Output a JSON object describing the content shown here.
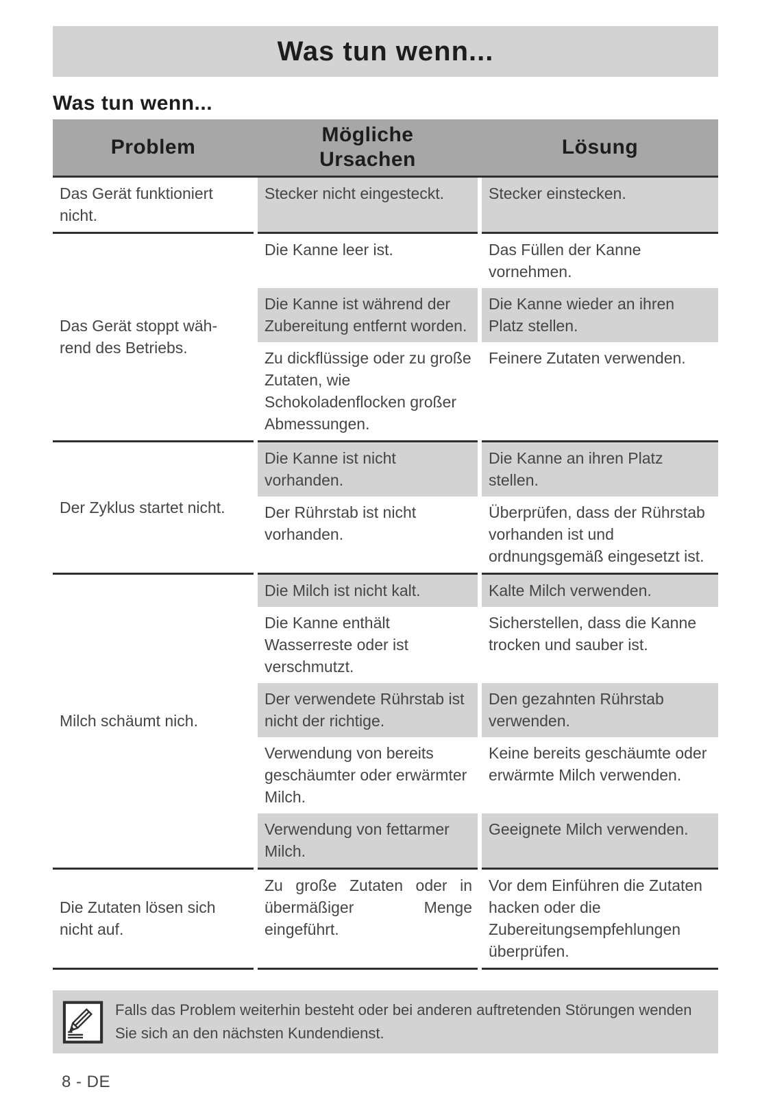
{
  "page": {
    "banner_title": "Was tun wenn...",
    "section_heading": "Was tun wenn...",
    "footer": "8 - DE"
  },
  "colors": {
    "banner_bg": "#d3d3d3",
    "header_bg": "#a7a7a7",
    "shaded_bg": "#d3d3d3",
    "rule": "#2f2f2f",
    "body_text": "#454545",
    "heading_text": "#1d1d1d"
  },
  "table": {
    "headers": [
      "Problem",
      "Mögliche\nUrsachen",
      "Lösung"
    ],
    "groups": [
      {
        "problem": "Das Gerät funktioniert nicht.",
        "rows": [
          {
            "cause": "Stecker nicht eingesteckt.",
            "solution": "Stecker einstecken."
          }
        ]
      },
      {
        "problem": "Das Gerät stoppt wäh-\nrend des Betriebs.",
        "rows": [
          {
            "cause": "Die Kanne leer ist.",
            "solution": "Das Füllen der Kanne vornehmen."
          },
          {
            "cause": "Die Kanne ist während der Zubereitung entfernt worden.",
            "solution": "Die Kanne wieder an ihren Platz stellen."
          },
          {
            "cause": "Zu dickflüssige oder zu große Zutaten, wie Schokoladenflocken großer Abmessungen.",
            "solution": "Feinere Zutaten verwenden."
          }
        ]
      },
      {
        "problem": "Der Zyklus startet nicht.",
        "rows": [
          {
            "cause": "Die Kanne ist nicht vorhanden.",
            "solution": "Die Kanne an ihren Platz stellen."
          },
          {
            "cause": "Der Rührstab ist nicht vorhanden.",
            "solution": "Überprüfen, dass der Rührstab vorhanden ist und ordnungsgemäß eingesetzt ist."
          }
        ]
      },
      {
        "problem": "Milch schäumt nich.",
        "rows": [
          {
            "cause": "Die Milch ist nicht kalt.",
            "solution": "Kalte Milch verwenden."
          },
          {
            "cause": "Die Kanne enthält Wasserreste oder ist verschmutzt.",
            "solution": "Sicherstellen, dass die Kanne trocken und sauber ist."
          },
          {
            "cause": "Der verwendete Rührstab ist nicht der richtige.",
            "solution": "Den gezahnten Rührstab verwenden."
          },
          {
            "cause": "Verwendung von bereits geschäumter oder erwärmter Milch.",
            "solution": "Keine bereits geschäumte oder erwärmte Milch verwenden."
          },
          {
            "cause": "Verwendung von fettarmer Milch.",
            "solution": "Geeignete Milch verwenden."
          }
        ]
      },
      {
        "problem": "Die Zutaten lösen sich nicht auf.",
        "rows": [
          {
            "cause": "Zu große Zutaten oder in übermäßiger Menge eingeführt.",
            "solution": "Vor dem Einführen die Zutaten hacken oder die Zubereitungsempfehlungen überprüfen."
          }
        ]
      }
    ]
  },
  "note": {
    "icon": "pencil-note-icon",
    "text": "Falls das Problem weiterhin besteht oder bei anderen auftretenden Störungen wenden\nSie sich an den nächsten Kundendienst."
  }
}
